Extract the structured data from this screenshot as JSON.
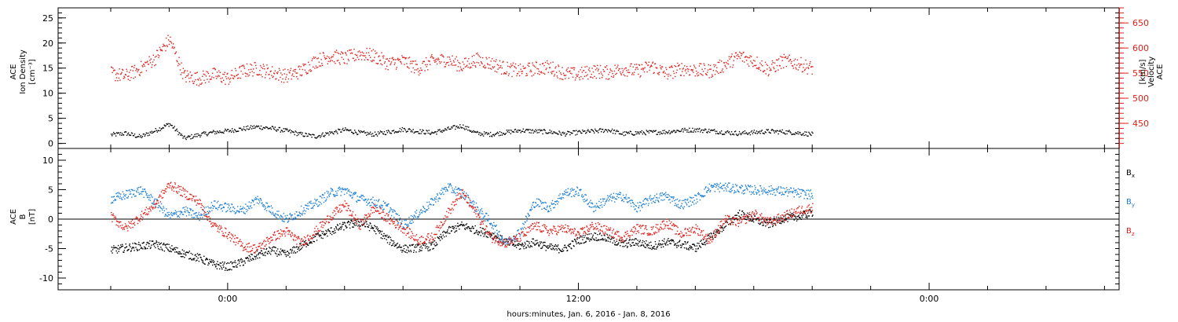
{
  "chart_data": [
    {
      "panel": "ion-density-velocity",
      "type": "scatter",
      "left_axis": {
        "label_lines": [
          "ACE",
          "Ion Density"
        ],
        "units": "[cm⁻³]",
        "ylim": [
          -1,
          27
        ],
        "ticks": [
          0,
          5,
          10,
          15,
          20,
          25
        ],
        "color": "#000000"
      },
      "right_axis": {
        "label_lines": [
          "ACE",
          "Velocity"
        ],
        "units": "[km/s]",
        "ylim": [
          400,
          680
        ],
        "ticks": [
          450,
          500,
          550,
          600,
          650
        ],
        "color": "#e0201b"
      },
      "series": [
        {
          "color": "#000000",
          "axis": "left",
          "points": [
            [
              -4.0,
              1.8
            ],
            [
              -3.5,
              2.1
            ],
            [
              -3.0,
              1.4
            ],
            [
              -2.5,
              2.6
            ],
            [
              -2.0,
              4.0
            ],
            [
              -1.5,
              1.1
            ],
            [
              -1.0,
              1.8
            ],
            [
              -0.5,
              2.3
            ],
            [
              0,
              2.6
            ],
            [
              0.5,
              3.0
            ],
            [
              1.0,
              3.4
            ],
            [
              1.5,
              3.1
            ],
            [
              2.0,
              2.6
            ],
            [
              2.5,
              1.9
            ],
            [
              3.0,
              1.5
            ],
            [
              3.5,
              2.2
            ],
            [
              4.0,
              2.8
            ],
            [
              4.5,
              2.2
            ],
            [
              5.0,
              1.9
            ],
            [
              5.5,
              2.4
            ],
            [
              6.0,
              2.9
            ],
            [
              6.5,
              2.5
            ],
            [
              7.0,
              2.2
            ],
            [
              7.5,
              2.9
            ],
            [
              8.0,
              3.6
            ],
            [
              8.5,
              2.1
            ],
            [
              9.0,
              1.9
            ],
            [
              9.5,
              2.3
            ],
            [
              10.0,
              2.7
            ],
            [
              10.5,
              2.5
            ],
            [
              11.0,
              2.4
            ],
            [
              11.5,
              2.0
            ],
            [
              12.0,
              2.3
            ],
            [
              12.5,
              2.5
            ],
            [
              13.0,
              2.8
            ],
            [
              13.5,
              2.0
            ],
            [
              14.0,
              2.2
            ],
            [
              14.5,
              2.3
            ],
            [
              15.0,
              2.4
            ],
            [
              15.5,
              2.7
            ],
            [
              16.0,
              2.8
            ],
            [
              16.5,
              2.6
            ],
            [
              17.0,
              2.3
            ],
            [
              17.5,
              2.1
            ],
            [
              18.0,
              2.3
            ],
            [
              18.5,
              2.5
            ],
            [
              19.0,
              2.4
            ],
            [
              19.5,
              2.2
            ],
            [
              20.0,
              1.9
            ]
          ]
        },
        {
          "color": "#e0201b",
          "axis": "right",
          "points": [
            [
              -4.0,
              550
            ],
            [
              -3.5,
              545
            ],
            [
              -3.0,
              560
            ],
            [
              -2.5,
              580
            ],
            [
              -2.0,
              618
            ],
            [
              -1.5,
              545
            ],
            [
              -1.0,
              540
            ],
            [
              -0.5,
              548
            ],
            [
              0,
              540
            ],
            [
              0.5,
              555
            ],
            [
              1.0,
              560
            ],
            [
              1.5,
              552
            ],
            [
              2.0,
              545
            ],
            [
              2.5,
              555
            ],
            [
              3.0,
              575
            ],
            [
              3.5,
              585
            ],
            [
              4.0,
              580
            ],
            [
              4.5,
              590
            ],
            [
              5.0,
              585
            ],
            [
              5.5,
              570
            ],
            [
              6.0,
              575
            ],
            [
              6.5,
              560
            ],
            [
              7.0,
              575
            ],
            [
              7.5,
              578
            ],
            [
              8.0,
              565
            ],
            [
              8.5,
              578
            ],
            [
              9.0,
              570
            ],
            [
              9.5,
              560
            ],
            [
              10.0,
              555
            ],
            [
              10.5,
              560
            ],
            [
              11.0,
              563
            ],
            [
              11.5,
              550
            ],
            [
              12.0,
              548
            ],
            [
              12.5,
              555
            ],
            [
              13.0,
              552
            ],
            [
              13.5,
              560
            ],
            [
              14.0,
              555
            ],
            [
              14.5,
              565
            ],
            [
              15.0,
              550
            ],
            [
              15.5,
              560
            ],
            [
              16.0,
              557
            ],
            [
              16.5,
              555
            ],
            [
              17.0,
              568
            ],
            [
              17.5,
              585
            ],
            [
              18.0,
              575
            ],
            [
              18.5,
              558
            ],
            [
              19.0,
              575
            ],
            [
              19.5,
              570
            ],
            [
              20.0,
              560
            ]
          ]
        }
      ],
      "xlim": [
        -5.8,
        30.5
      ]
    },
    {
      "panel": "magnetic-field",
      "type": "scatter",
      "left_axis": {
        "label_lines": [
          "ACE",
          "B"
        ],
        "units": "[nT]",
        "ylim": [
          -12,
          12
        ],
        "ticks": [
          -10,
          -5,
          0,
          5,
          10
        ],
        "color": "#000000"
      },
      "zero_line": true,
      "series": [
        {
          "name": "Bx",
          "name_main": "B",
          "name_sub": "x",
          "color": "#000000",
          "points": [
            [
              -4.0,
              -5.2
            ],
            [
              -3.5,
              -4.8
            ],
            [
              -3.0,
              -4.5
            ],
            [
              -2.5,
              -4.2
            ],
            [
              -2.0,
              -4.9
            ],
            [
              -1.5,
              -5.8
            ],
            [
              -1.0,
              -6.5
            ],
            [
              -0.5,
              -7.6
            ],
            [
              0,
              -8.0
            ],
            [
              0.5,
              -7.2
            ],
            [
              1.0,
              -6.0
            ],
            [
              1.5,
              -5.2
            ],
            [
              2.0,
              -6.0
            ],
            [
              2.5,
              -4.5
            ],
            [
              3.0,
              -3.0
            ],
            [
              3.5,
              -2.0
            ],
            [
              4.0,
              -1.0
            ],
            [
              4.5,
              -0.5
            ],
            [
              5.0,
              -1.5
            ],
            [
              5.5,
              -3.5
            ],
            [
              6.0,
              -5.0
            ],
            [
              6.5,
              -4.8
            ],
            [
              7.0,
              -4.5
            ],
            [
              7.5,
              -2.0
            ],
            [
              8.0,
              -1.0
            ],
            [
              8.5,
              -1.8
            ],
            [
              9.0,
              -2.5
            ],
            [
              9.5,
              -3.8
            ],
            [
              10.0,
              -4.5
            ],
            [
              10.5,
              -3.8
            ],
            [
              11.0,
              -4.8
            ],
            [
              11.5,
              -5.0
            ],
            [
              12.0,
              -3.5
            ],
            [
              12.5,
              -2.8
            ],
            [
              13.0,
              -3.2
            ],
            [
              13.5,
              -4.2
            ],
            [
              14.0,
              -3.8
            ],
            [
              14.5,
              -4.5
            ],
            [
              15.0,
              -3.8
            ],
            [
              15.5,
              -4.2
            ],
            [
              16.0,
              -4.8
            ],
            [
              16.5,
              -3.0
            ],
            [
              17.0,
              -1.0
            ],
            [
              17.5,
              1.0
            ],
            [
              18.0,
              0.0
            ],
            [
              18.5,
              -0.8
            ],
            [
              19.0,
              0.2
            ],
            [
              19.5,
              0.5
            ],
            [
              20.0,
              1.2
            ]
          ]
        },
        {
          "name": "By",
          "name_main": "B",
          "name_sub": "y",
          "color": "#1e7fd4",
          "points": [
            [
              -4.0,
              3.5
            ],
            [
              -3.5,
              4.2
            ],
            [
              -3.0,
              5.0
            ],
            [
              -2.5,
              3.0
            ],
            [
              -2.0,
              0.5
            ],
            [
              -1.5,
              1.5
            ],
            [
              -1.0,
              0.5
            ],
            [
              -0.5,
              2.5
            ],
            [
              0,
              2.0
            ],
            [
              0.5,
              1.5
            ],
            [
              1.0,
              3.5
            ],
            [
              1.5,
              1.5
            ],
            [
              2.0,
              0.0
            ],
            [
              2.5,
              1.5
            ],
            [
              3.0,
              2.8
            ],
            [
              3.5,
              4.5
            ],
            [
              4.0,
              5.0
            ],
            [
              4.5,
              3.5
            ],
            [
              5.0,
              3.0
            ],
            [
              5.5,
              2.0
            ],
            [
              6.0,
              -1.0
            ],
            [
              6.5,
              1.0
            ],
            [
              7.0,
              3.0
            ],
            [
              7.5,
              5.5
            ],
            [
              8.0,
              4.5
            ],
            [
              8.5,
              2.0
            ],
            [
              9.0,
              -0.5
            ],
            [
              9.5,
              -4.0
            ],
            [
              10.0,
              -2.0
            ],
            [
              10.5,
              3.0
            ],
            [
              11.0,
              2.0
            ],
            [
              11.5,
              4.5
            ],
            [
              12.0,
              4.8
            ],
            [
              12.5,
              2.0
            ],
            [
              13.0,
              3.5
            ],
            [
              13.5,
              4.0
            ],
            [
              14.0,
              2.0
            ],
            [
              14.5,
              3.5
            ],
            [
              15.0,
              4.0
            ],
            [
              15.5,
              2.5
            ],
            [
              16.0,
              3.5
            ],
            [
              16.5,
              5.5
            ],
            [
              17.0,
              5.5
            ],
            [
              17.5,
              5.2
            ],
            [
              18.0,
              5.0
            ],
            [
              18.5,
              5.0
            ],
            [
              19.0,
              4.8
            ],
            [
              19.5,
              4.5
            ],
            [
              20.0,
              4.2
            ]
          ]
        },
        {
          "name": "Bz",
          "name_main": "B",
          "name_sub": "z",
          "color": "#e0201b",
          "points": [
            [
              -4.0,
              0.5
            ],
            [
              -3.5,
              -1.5
            ],
            [
              -3.0,
              0.5
            ],
            [
              -2.5,
              2.5
            ],
            [
              -2.0,
              6.0
            ],
            [
              -1.5,
              4.5
            ],
            [
              -1.0,
              3.0
            ],
            [
              -0.5,
              -1.0
            ],
            [
              0,
              -2.5
            ],
            [
              0.5,
              -4.5
            ],
            [
              1.0,
              -5.0
            ],
            [
              1.5,
              -3.0
            ],
            [
              2.0,
              -2.0
            ],
            [
              2.5,
              -4.0
            ],
            [
              3.0,
              -2.0
            ],
            [
              3.5,
              0.5
            ],
            [
              4.0,
              2.5
            ],
            [
              4.5,
              -1.0
            ],
            [
              5.0,
              2.0
            ],
            [
              5.5,
              0.0
            ],
            [
              6.0,
              -1.5
            ],
            [
              6.5,
              -3.5
            ],
            [
              7.0,
              -3.0
            ],
            [
              7.5,
              1.0
            ],
            [
              8.0,
              4.5
            ],
            [
              8.5,
              1.0
            ],
            [
              9.0,
              -3.0
            ],
            [
              9.5,
              -4.0
            ],
            [
              10.0,
              -3.0
            ],
            [
              10.5,
              -1.0
            ],
            [
              11.0,
              -2.0
            ],
            [
              11.5,
              -1.5
            ],
            [
              12.0,
              -2.5
            ],
            [
              12.5,
              -1.0
            ],
            [
              13.0,
              -2.0
            ],
            [
              13.5,
              -3.0
            ],
            [
              14.0,
              -1.5
            ],
            [
              14.5,
              -2.0
            ],
            [
              15.0,
              -0.5
            ],
            [
              15.5,
              -2.5
            ],
            [
              16.0,
              -1.5
            ],
            [
              16.5,
              -3.5
            ],
            [
              17.0,
              0.0
            ],
            [
              17.5,
              -0.5
            ],
            [
              18.0,
              1.0
            ],
            [
              18.5,
              -0.5
            ],
            [
              19.0,
              0.5
            ],
            [
              19.5,
              1.5
            ],
            [
              20.0,
              2.0
            ]
          ]
        }
      ],
      "xlim": [
        -5.8,
        30.5
      ]
    }
  ],
  "x_axis": {
    "tick_labels": [
      {
        "hours": 0,
        "label": "0:00"
      },
      {
        "hours": 12,
        "label": "12:00"
      },
      {
        "hours": 24,
        "label": "0:00"
      }
    ],
    "minor_tick_every_hours": 2,
    "title": "hours:minutes, Jan.  6, 2016 - Jan.  8, 2016"
  }
}
